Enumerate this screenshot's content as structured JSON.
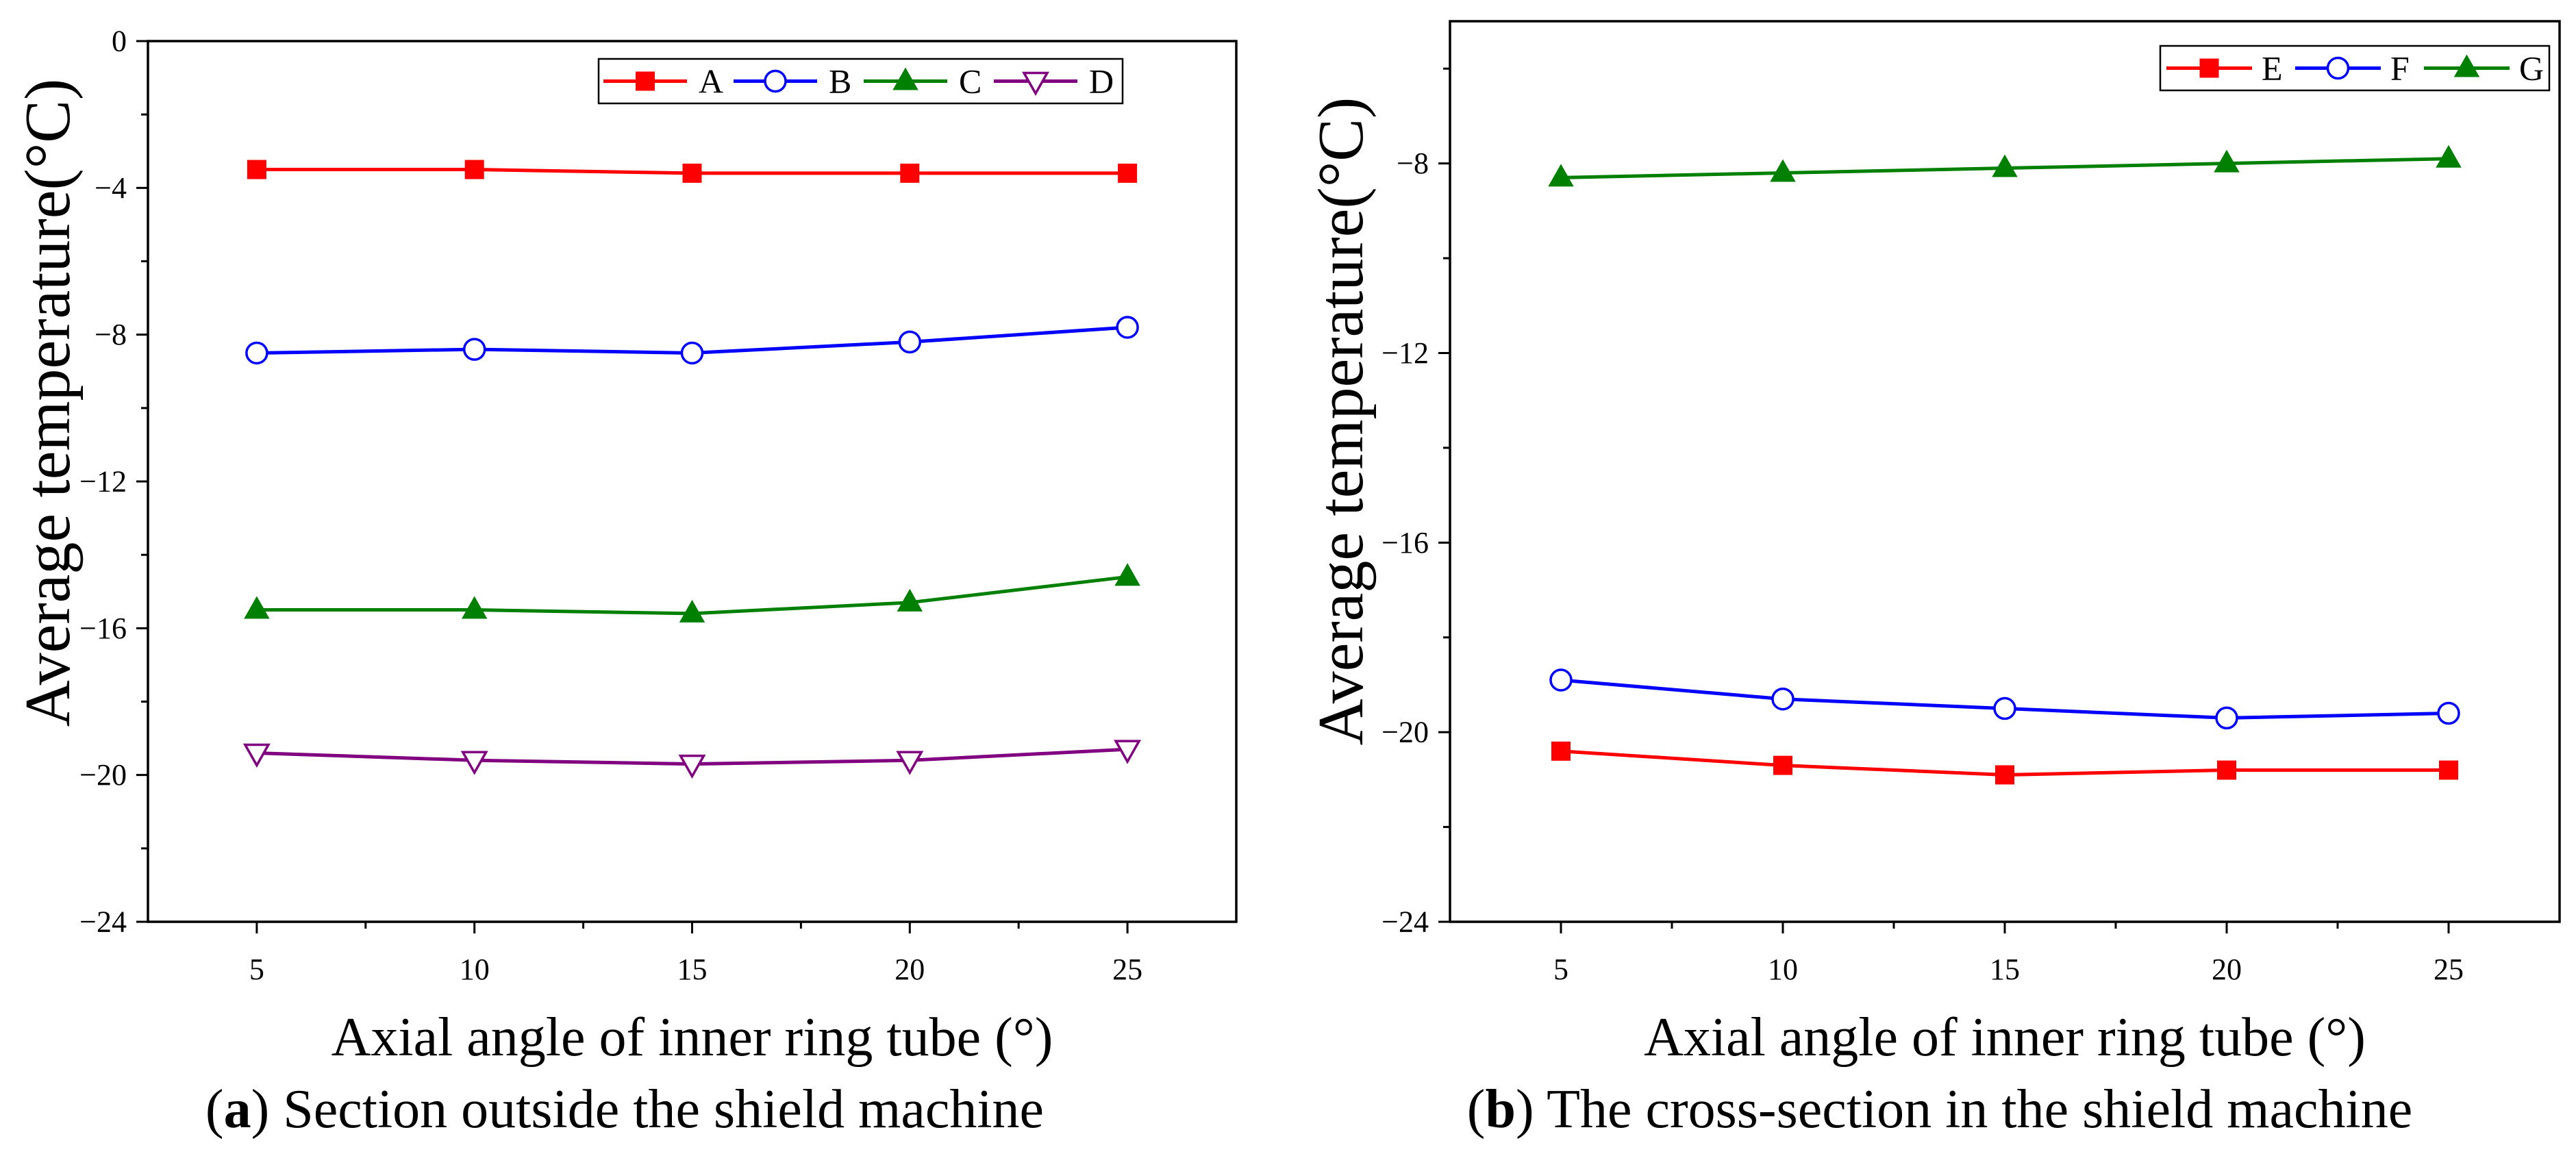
{
  "chart_data": [
    {
      "type": "line",
      "xlabel": "Axial angle of inner ring tube (°)",
      "ylabel": "Average temperature(°C)",
      "x": [
        5,
        10,
        15,
        20,
        25
      ],
      "xlim": [
        2.5,
        27.5
      ],
      "ylim": [
        -24,
        0
      ],
      "xticks": [
        5,
        10,
        15,
        20,
        25
      ],
      "xticklabels": [
        "5",
        "10",
        "15",
        "20",
        "25"
      ],
      "yticks": [
        -24,
        -20,
        -16,
        -12,
        -8,
        -4,
        0
      ],
      "yticklabels": [
        "−24",
        "−20",
        "−16",
        "−12",
        "−8",
        "−4",
        "0"
      ],
      "x_minor_step": 2.5,
      "y_minor_step": 2,
      "grid": false,
      "legend_position": "top-right",
      "series": [
        {
          "name": "A",
          "color": "#FF0000",
          "marker": "square",
          "values": [
            -3.5,
            -3.5,
            -3.6,
            -3.6,
            -3.6
          ]
        },
        {
          "name": "B",
          "color": "#0000FF",
          "marker": "circle-open",
          "values": [
            -8.5,
            -8.4,
            -8.5,
            -8.2,
            -7.8
          ]
        },
        {
          "name": "C",
          "color": "#008000",
          "marker": "triangle-up",
          "values": [
            -15.5,
            -15.5,
            -15.6,
            -15.3,
            -14.6
          ]
        },
        {
          "name": "D",
          "color": "#800080",
          "marker": "triangle-down-open",
          "values": [
            -19.4,
            -19.6,
            -19.7,
            -19.6,
            -19.3
          ]
        }
      ],
      "caption": {
        "open": "(",
        "label": "a",
        "text": ") Section outside the shield machine"
      }
    },
    {
      "type": "line",
      "xlabel": "Axial angle of inner ring tube (°)",
      "ylabel": "Average temperature(°C)",
      "x": [
        5,
        10,
        15,
        20,
        25
      ],
      "xlim": [
        2.5,
        27.5
      ],
      "ylim": [
        -24,
        -5
      ],
      "xticks": [
        5,
        10,
        15,
        20,
        25
      ],
      "xticklabels": [
        "5",
        "10",
        "15",
        "20",
        "25"
      ],
      "yticks": [
        -24,
        -20,
        -16,
        -12,
        -8
      ],
      "yticklabels": [
        "−24",
        "−20",
        "−16",
        "−12",
        "−8"
      ],
      "x_minor_step": 2.5,
      "y_minor_step": 2,
      "grid": false,
      "legend_position": "top-right",
      "series": [
        {
          "name": "E",
          "color": "#FF0000",
          "marker": "square",
          "values": [
            -20.4,
            -20.7,
            -20.9,
            -20.8,
            -20.8
          ]
        },
        {
          "name": "F",
          "color": "#0000FF",
          "marker": "circle-open",
          "values": [
            -18.9,
            -19.3,
            -19.5,
            -19.7,
            -19.6
          ]
        },
        {
          "name": "G",
          "color": "#008000",
          "marker": "triangle-up",
          "values": [
            -8.3,
            -8.2,
            -8.1,
            -8.0,
            -7.9
          ]
        }
      ],
      "caption": {
        "open": "(",
        "label": "b",
        "text": ") The cross-section in the shield machine"
      }
    }
  ]
}
